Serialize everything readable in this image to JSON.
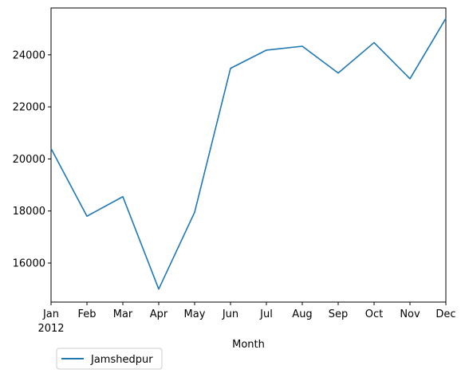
{
  "chart_data": {
    "type": "line",
    "title": "",
    "xlabel": "Month",
    "ylabel": "",
    "categories": [
      "Jan",
      "Feb",
      "Mar",
      "Apr",
      "May",
      "Jun",
      "Jul",
      "Aug",
      "Sep",
      "Oct",
      "Nov",
      "Dec"
    ],
    "year_label": "2012",
    "series": [
      {
        "name": "Jamshedpur",
        "color": "#1f77b4",
        "values": [
          20400,
          17800,
          18550,
          15000,
          17950,
          23480,
          24180,
          24330,
          23300,
          24470,
          23080,
          25400
        ]
      }
    ],
    "ylim": [
      14500,
      25800
    ],
    "yticks": [
      16000,
      18000,
      20000,
      22000,
      24000
    ],
    "ytick_labels": [
      "16000",
      "18000",
      "20000",
      "22000",
      "24000"
    ],
    "grid": false,
    "legend_position": "below-left"
  }
}
